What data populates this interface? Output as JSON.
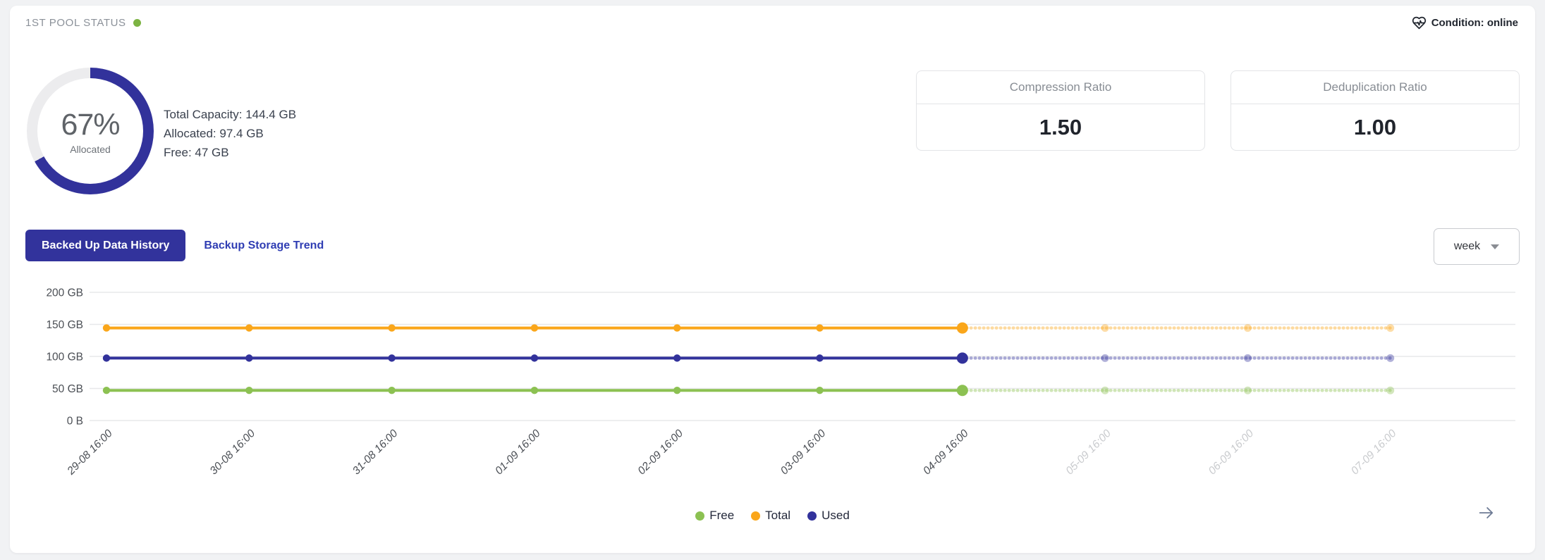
{
  "header": {
    "title": "1ST POOL STATUS",
    "status_dot_color": "#7cb342",
    "condition_label": "Condition: online"
  },
  "pool": {
    "allocated_percent": 67,
    "allocated_percent_label": "67%",
    "allocated_caption": "Allocated",
    "ring_color": "#32329b",
    "ring_track_color": "#ececee",
    "capacity_lines": [
      "Total Capacity: 144.4 GB",
      "Allocated: 97.4 GB",
      "Free: 47 GB"
    ]
  },
  "ratio_cards": [
    {
      "title": "Compression Ratio",
      "value": "1.50"
    },
    {
      "title": "Deduplication Ratio",
      "value": "1.00"
    }
  ],
  "tabs": {
    "active": "Backed Up Data History",
    "inactive": "Backup Storage Trend"
  },
  "range_select": {
    "value": "week"
  },
  "chart_data": {
    "type": "line",
    "title": "Backed Up Data History",
    "unit": "GB",
    "x": [
      "29-08 16:00",
      "30-08 16:00",
      "31-08 16:00",
      "01-09 16:00",
      "02-09 16:00",
      "03-09 16:00",
      "04-09 16:00",
      "05-09 16:00",
      "06-09 16:00",
      "07-09 16:00"
    ],
    "observed_until_index": 6,
    "series": [
      {
        "name": "Free",
        "color": "#8cc152",
        "values": [
          47,
          47,
          47,
          47,
          47,
          47,
          47,
          47,
          47,
          47
        ]
      },
      {
        "name": "Total",
        "color": "#faa61a",
        "values": [
          144.4,
          144.4,
          144.4,
          144.4,
          144.4,
          144.4,
          144.4,
          144.4,
          144.4,
          144.4
        ]
      },
      {
        "name": "Used",
        "color": "#32329b",
        "values": [
          97.4,
          97.4,
          97.4,
          97.4,
          97.4,
          97.4,
          97.4,
          97.4,
          97.4,
          97.4
        ]
      }
    ],
    "ylim": [
      0,
      200
    ],
    "yticks": [
      {
        "value": 0,
        "label": "0 B"
      },
      {
        "value": 50,
        "label": "50 GB"
      },
      {
        "value": 100,
        "label": "100 GB"
      },
      {
        "value": 150,
        "label": "150 GB"
      },
      {
        "value": 200,
        "label": "200 GB"
      }
    ],
    "grid": "horizontal",
    "legend_position": "bottom",
    "forecast_style": "dotted-faded",
    "axis_label_color": "#4b4f55",
    "future_label_color": "#c9cbce"
  },
  "legend": {
    "items": [
      {
        "label": "Free",
        "color": "#8cc152"
      },
      {
        "label": "Total",
        "color": "#faa61a"
      },
      {
        "label": "Used",
        "color": "#32329b"
      }
    ]
  }
}
